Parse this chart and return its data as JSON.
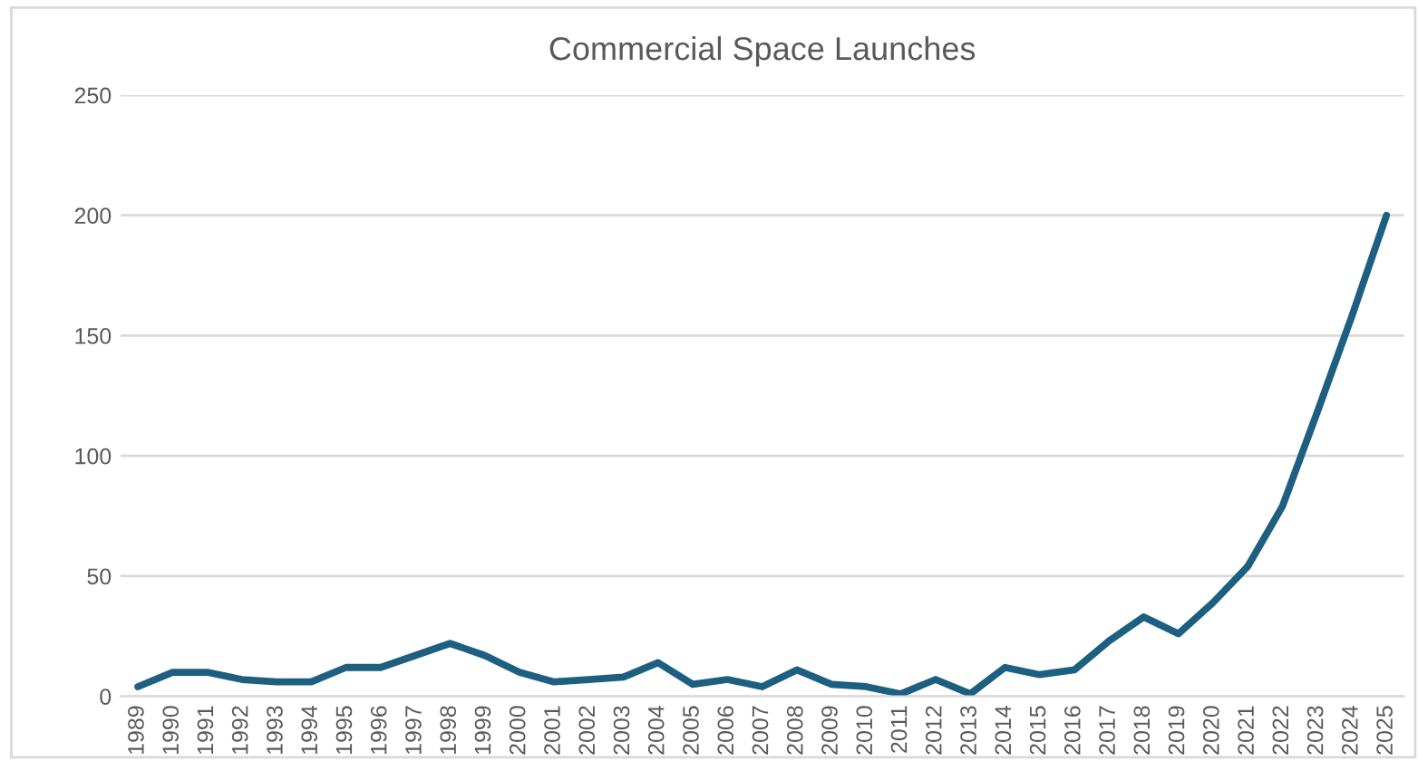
{
  "chart_data": {
    "type": "line",
    "title": "Commercial Space Launches",
    "categories": [
      "1989",
      "1990",
      "1991",
      "1992",
      "1993",
      "1994",
      "1995",
      "1996",
      "1997",
      "1998",
      "1999",
      "2000",
      "2001",
      "2002",
      "2003",
      "2004",
      "2005",
      "2006",
      "2007",
      "2008",
      "2009",
      "2010",
      "2011",
      "2012",
      "2013",
      "2014",
      "2015",
      "2016",
      "2017",
      "2018",
      "2019",
      "2020",
      "2021",
      "2022",
      "2023",
      "2024",
      "2025"
    ],
    "series": [
      {
        "color": "#1d5f80",
        "values": [
          4,
          10,
          10,
          7,
          6,
          6,
          12,
          12,
          17,
          22,
          17,
          10,
          6,
          7,
          8,
          14,
          5,
          7,
          4,
          11,
          5,
          4,
          1,
          7,
          1,
          12,
          9,
          11,
          23,
          33,
          26,
          39,
          54,
          79,
          118,
          158,
          200
        ]
      }
    ],
    "ylim": [
      0,
      250
    ],
    "yticks": [
      0,
      50,
      100,
      150,
      200,
      250
    ],
    "grid": "y",
    "line_style": "solid",
    "marker": "none"
  }
}
